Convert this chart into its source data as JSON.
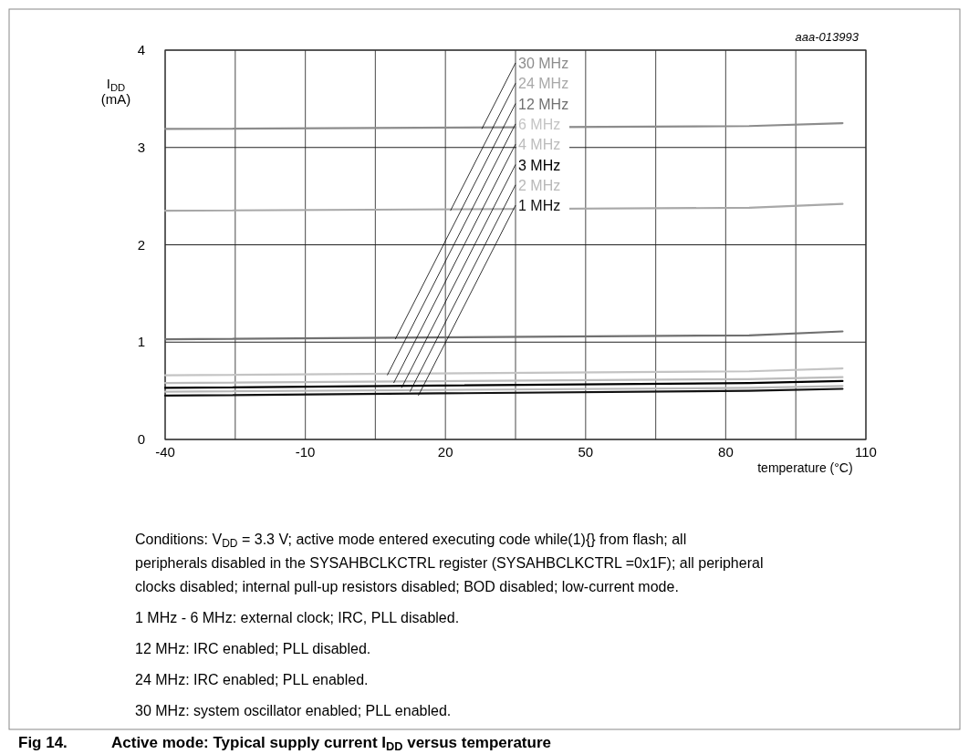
{
  "chart_data": {
    "type": "line",
    "title": "Fig 14.   Active mode: Typical supply current I$_{DD}$ versus temperature",
    "xlabel": "temperature (°C)",
    "ylabel": "I$_{DD}$ (mA)",
    "x": [
      -40,
      85,
      105
    ],
    "series": [
      {
        "name": "30 MHz",
        "color": "#8c8c8c",
        "values": [
          3.19,
          3.22,
          3.25
        ]
      },
      {
        "name": "24 MHz",
        "color": "#a8a8a8",
        "values": [
          2.35,
          2.38,
          2.42
        ]
      },
      {
        "name": "12 MHz",
        "color": "#707070",
        "values": [
          1.03,
          1.07,
          1.11
        ]
      },
      {
        "name": "6 MHz",
        "color": "#c4c4c4",
        "values": [
          0.66,
          0.7,
          0.73
        ]
      },
      {
        "name": "4 MHz",
        "color": "#bcbcbc",
        "values": [
          0.58,
          0.62,
          0.64
        ]
      },
      {
        "name": "3 MHz",
        "color": "#000000",
        "values": [
          0.53,
          0.58,
          0.6
        ]
      },
      {
        "name": "2 MHz",
        "color": "#b8b8b8",
        "values": [
          0.49,
          0.53,
          0.55
        ]
      },
      {
        "name": "1 MHz",
        "color": "#111111",
        "values": [
          0.45,
          0.5,
          0.52
        ]
      }
    ],
    "xlim": [
      -40,
      110
    ],
    "ylim": [
      0,
      4
    ],
    "xticks": [
      -40,
      {
        "value": -25,
        "label": null
      },
      -10,
      {
        "value": 5,
        "label": null
      },
      20,
      {
        "value": 35,
        "label": null
      },
      50,
      {
        "value": 65,
        "label": null
      },
      80,
      {
        "value": 95,
        "label": null
      },
      110
    ],
    "yticks": [
      0,
      1,
      2,
      3,
      4
    ],
    "grid": true,
    "annotations": [
      "aaa-013993",
      "Conditions: V$_{DD}$ = 3.3 V; active mode entered executing code while(1){} from flash; all\nperipherals disabled in the SYSAHBCLKCTRL register (SYSAHBCLKCTRL =0x1F); all peripheral\nclocks disabled; internal pull-up resistors disabled; BOD disabled; low-current mode.",
      "1 MHz - 6 MHz: external clock; IRC, PLL disabled.",
      "12 MHz: IRC enabled; PLL disabled.",
      "24 MHz: IRC enabled; PLL enabled.",
      "30 MHz: system oscillator enabled; PLL enabled."
    ]
  }
}
